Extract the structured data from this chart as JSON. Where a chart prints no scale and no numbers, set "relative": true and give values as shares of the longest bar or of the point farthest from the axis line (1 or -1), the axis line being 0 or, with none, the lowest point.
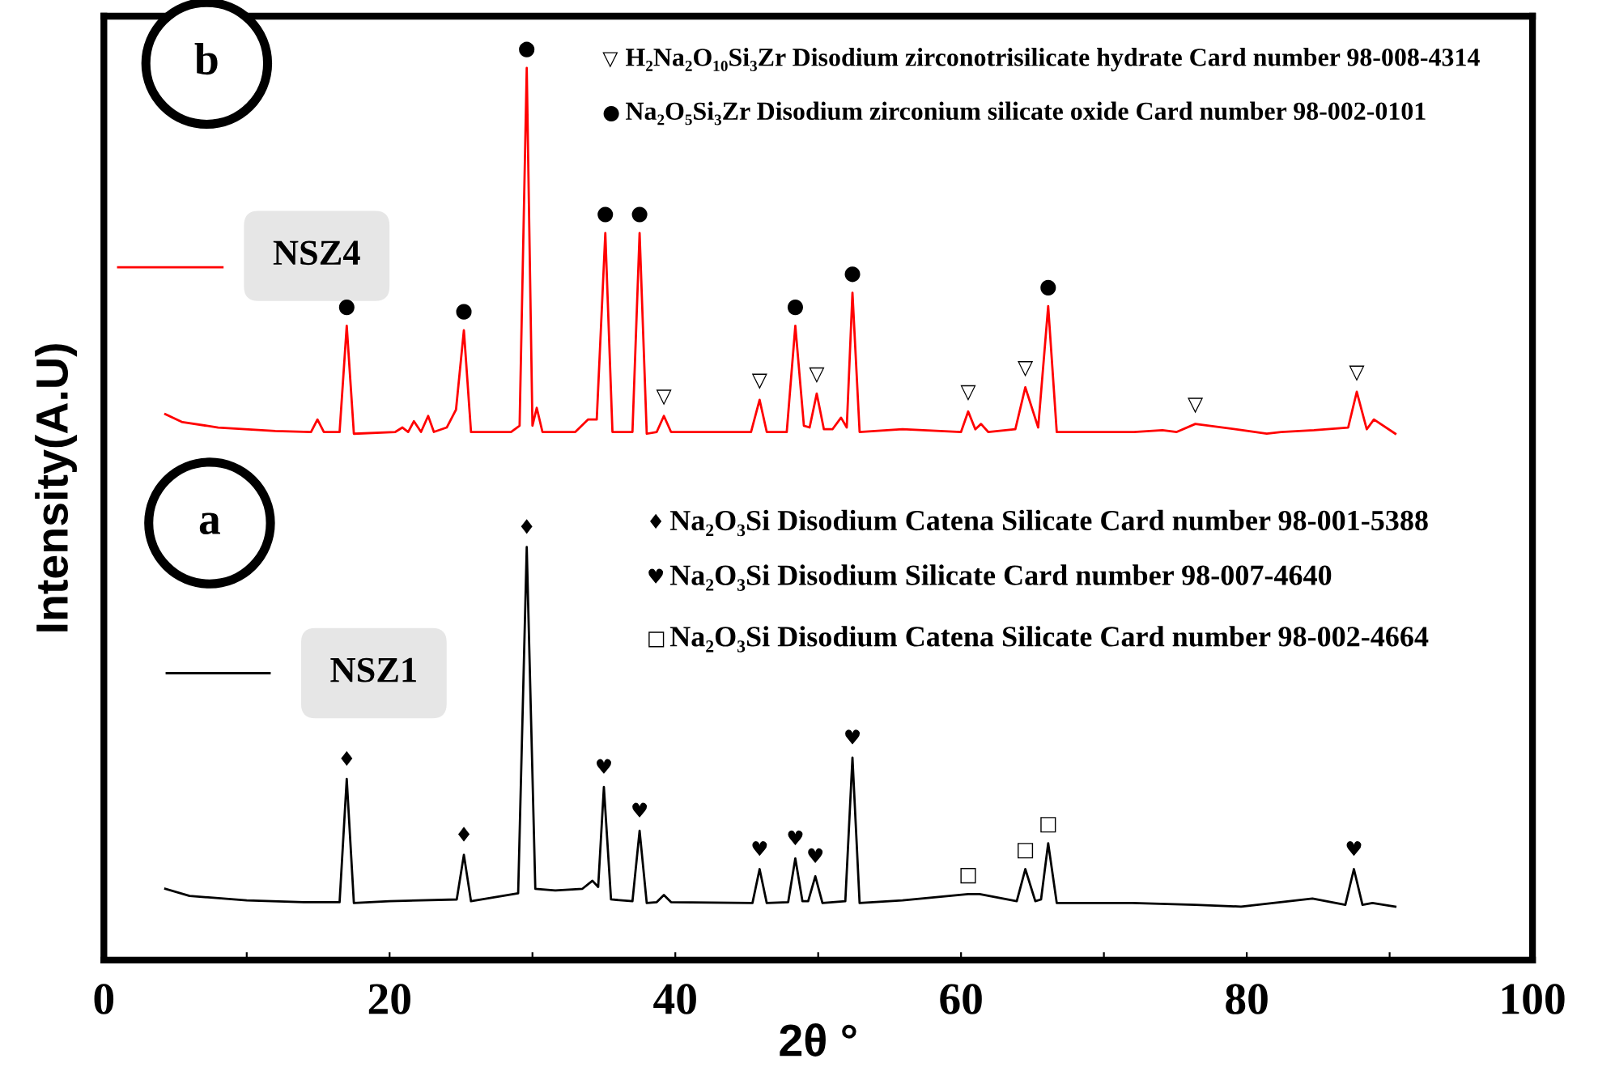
{
  "chart_data": {
    "type": "line",
    "relative": true,
    "xlabel": "2θ °",
    "ylabel": "Intensity(A.U)",
    "xlim": [
      0,
      100
    ],
    "xticks": [
      0,
      {
        "value": 10,
        "label": null
      },
      20,
      {
        "value": 30,
        "label": null
      },
      40,
      {
        "value": 50,
        "label": null
      },
      60,
      {
        "value": 70,
        "label": null
      },
      80,
      {
        "value": 90,
        "label": null
      },
      100
    ],
    "tick_labels": "x",
    "grid": false,
    "legend": "left",
    "marker": "none",
    "line_style": "solid",
    "series": [
      {
        "name": "NSZ4",
        "color": "#ff0000",
        "x": [
          4.3,
          5.5,
          8,
          12,
          14.5,
          14.95,
          15.4,
          16.5,
          17.0,
          17.5,
          20.4,
          20.9,
          21.3,
          21.7,
          22.2,
          22.7,
          23.1,
          24.0,
          24.65,
          25.2,
          25.7,
          28.5,
          29.1,
          29.6,
          30.0,
          30.3,
          30.7,
          33.0,
          33.9,
          34.5,
          35.1,
          35.6,
          37.0,
          37.5,
          38.0,
          38.7,
          39.2,
          39.7,
          45.3,
          45.9,
          46.4,
          47.8,
          48.4,
          49.0,
          49.4,
          49.9,
          50.4,
          51.0,
          51.6,
          52.0,
          52.4,
          52.9,
          55.9,
          60.0,
          60.5,
          61.0,
          61.4,
          61.9,
          63.8,
          64.5,
          65.4,
          66.1,
          66.7,
          67.5,
          68.6,
          72.1,
          74.1,
          75.1,
          76.4,
          79.7,
          81.4,
          82.4,
          84.7,
          87.1,
          87.7,
          88.4,
          88.9,
          90.4
        ],
        "values": [
          0.612,
          0.603,
          0.597,
          0.593,
          0.592,
          0.606,
          0.592,
          0.592,
          0.711,
          0.59,
          0.592,
          0.597,
          0.592,
          0.604,
          0.592,
          0.61,
          0.592,
          0.597,
          0.617,
          0.706,
          0.592,
          0.592,
          0.599,
          1.0,
          0.599,
          0.619,
          0.592,
          0.592,
          0.606,
          0.606,
          0.815,
          0.592,
          0.592,
          0.815,
          0.59,
          0.592,
          0.61,
          0.592,
          0.592,
          0.628,
          0.592,
          0.592,
          0.711,
          0.599,
          0.597,
          0.635,
          0.595,
          0.595,
          0.608,
          0.597,
          0.748,
          0.592,
          0.595,
          0.592,
          0.615,
          0.595,
          0.601,
          0.592,
          0.595,
          0.642,
          0.597,
          0.733,
          0.592,
          0.592,
          0.592,
          0.592,
          0.594,
          0.592,
          0.601,
          0.594,
          0.59,
          0.592,
          0.594,
          0.597,
          0.637,
          0.595,
          0.606,
          0.59
        ]
      },
      {
        "name": "NSZ1",
        "color": "#000000",
        "x": [
          4.3,
          6,
          10,
          14,
          16.5,
          17.0,
          17.5,
          20,
          24.7,
          25.2,
          25.7,
          29.0,
          29.6,
          30.2,
          31.6,
          33.5,
          34.2,
          34.6,
          35.0,
          35.5,
          37.0,
          37.5,
          38.0,
          38.7,
          39.2,
          39.7,
          45.4,
          45.9,
          46.4,
          47.9,
          48.4,
          48.9,
          49.3,
          49.8,
          50.3,
          51.9,
          52.4,
          52.9,
          55.9,
          60.5,
          61.3,
          63.9,
          64.5,
          65.2,
          65.6,
          66.1,
          66.7,
          72.0,
          76.4,
          79.6,
          84.6,
          86.9,
          87.5,
          88.1,
          88.8,
          90.4
        ],
        "values": [
          0.08,
          0.072,
          0.067,
          0.065,
          0.065,
          0.203,
          0.064,
          0.066,
          0.068,
          0.118,
          0.066,
          0.075,
          0.463,
          0.08,
          0.078,
          0.08,
          0.089,
          0.082,
          0.194,
          0.068,
          0.066,
          0.145,
          0.064,
          0.065,
          0.073,
          0.065,
          0.064,
          0.102,
          0.064,
          0.065,
          0.114,
          0.066,
          0.066,
          0.094,
          0.064,
          0.066,
          0.227,
          0.064,
          0.067,
          0.074,
          0.074,
          0.066,
          0.102,
          0.066,
          0.068,
          0.131,
          0.064,
          0.064,
          0.062,
          0.06,
          0.069,
          0.062,
          0.102,
          0.062,
          0.064,
          0.06
        ]
      }
    ],
    "annotations": [
      "b",
      "▽ H₂Na₂O₁₀Si₃Zr Disodium zirconotrisilicate hydrate Card number 98-008-4314",
      "● Na₂O₅Si₃Zr Disodium zirconium silicate oxide Card number 98-002-0101",
      "a",
      "♦ Na₂O₃Si Disodium Catena Silicate Card number 98-001-5388",
      "♥ Na₂O₃Si Disodium Silicate Card number 98-007-4640",
      "□ Na₂O₃Si Disodium Catena Silicate Card number 98-002-4664",
      {
        "text": "●",
        "x": 17.0,
        "y": 0.711
      },
      {
        "text": "●",
        "x": 25.2,
        "y": 0.706
      },
      {
        "text": "●",
        "x": 29.6,
        "y": 1.0
      },
      {
        "text": "●",
        "x": 35.1,
        "y": 0.815
      },
      {
        "text": "●",
        "x": 37.5,
        "y": 0.815
      },
      {
        "text": "●",
        "x": 48.4,
        "y": 0.711
      },
      {
        "text": "●",
        "x": 52.4,
        "y": 0.748
      },
      {
        "text": "●",
        "x": 66.1,
        "y": 0.733
      },
      {
        "text": "▽",
        "x": 39.2,
        "y": 0.61
      },
      {
        "text": "▽",
        "x": 45.9,
        "y": 0.628
      },
      {
        "text": "▽",
        "x": 49.9,
        "y": 0.635
      },
      {
        "text": "▽",
        "x": 60.5,
        "y": 0.615
      },
      {
        "text": "▽",
        "x": 64.5,
        "y": 0.642
      },
      {
        "text": "▽",
        "x": 76.4,
        "y": 0.601
      },
      {
        "text": "▽",
        "x": 87.7,
        "y": 0.637
      },
      {
        "text": "♦",
        "x": 17.0,
        "y": 0.203
      },
      {
        "text": "♦",
        "x": 25.2,
        "y": 0.118
      },
      {
        "text": "♦",
        "x": 29.6,
        "y": 0.463
      },
      {
        "text": "♥",
        "x": 35.0,
        "y": 0.194
      },
      {
        "text": "♥",
        "x": 37.5,
        "y": 0.145
      },
      {
        "text": "♥",
        "x": 45.9,
        "y": 0.102
      },
      {
        "text": "♥",
        "x": 48.4,
        "y": 0.114
      },
      {
        "text": "♥",
        "x": 49.8,
        "y": 0.094
      },
      {
        "text": "♥",
        "x": 52.4,
        "y": 0.227
      },
      {
        "text": "♥",
        "x": 87.5,
        "y": 0.102
      },
      {
        "text": "□",
        "x": 60.5,
        "y": 0.074
      },
      {
        "text": "□",
        "x": 64.5,
        "y": 0.102
      },
      {
        "text": "□",
        "x": 66.1,
        "y": 0.131
      }
    ]
  }
}
